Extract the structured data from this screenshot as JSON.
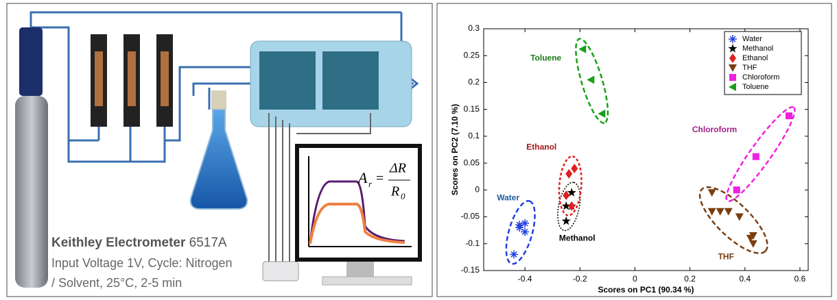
{
  "diagram": {
    "instrument": "Keithley Electrometer",
    "model": "6517A",
    "conditions_line1": "Input Voltage 1V, Cycle: Nitrogen",
    "conditions_line2": "/ Solvent, 25°C, 2-5 min",
    "formula": {
      "lhs": "A",
      "lhs_sub": "r",
      "numerator": "ΔR",
      "denominator": "R",
      "denominator_sub": "0"
    }
  },
  "chart_data": {
    "type": "scatter",
    "xlabel": "Scores on PC1 (90.34 %)",
    "ylabel": "Scores on PC2 (7.10 %)",
    "xlim": [
      -0.55,
      0.63
    ],
    "ylim": [
      -0.15,
      0.3
    ],
    "xticks": [
      -0.4,
      -0.2,
      0,
      0.2,
      0.4,
      0.6
    ],
    "yticks": [
      -0.15,
      -0.1,
      -0.05,
      0,
      0.05,
      0.1,
      0.15,
      0.2,
      0.25,
      0.3
    ],
    "grid": false,
    "legend": "upper right",
    "series": [
      {
        "name": "Water",
        "color": "#2040e0",
        "marker": "asterisk",
        "x": [
          -0.42,
          -0.4,
          -0.4,
          -0.42,
          -0.44
        ],
        "y": [
          -0.065,
          -0.062,
          -0.078,
          -0.07,
          -0.12
        ]
      },
      {
        "name": "Methanol",
        "color": "#000000",
        "marker": "star",
        "x": [
          -0.23,
          -0.25,
          -0.23,
          -0.25
        ],
        "y": [
          -0.005,
          -0.03,
          -0.03,
          -0.058
        ]
      },
      {
        "name": "Ethanol",
        "color": "#e02020",
        "marker": "diamond",
        "x": [
          -0.24,
          -0.22,
          -0.25,
          -0.23
        ],
        "y": [
          0.03,
          0.04,
          -0.01,
          -0.03
        ]
      },
      {
        "name": "THF",
        "color": "#7a3e10",
        "marker": "triangle-down",
        "x": [
          0.28,
          0.28,
          0.31,
          0.34,
          0.38,
          0.42,
          0.43,
          0.43
        ],
        "y": [
          -0.005,
          -0.04,
          -0.04,
          -0.04,
          -0.05,
          -0.09,
          -0.1,
          -0.085
        ]
      },
      {
        "name": "Chloroform",
        "color": "#f020e0",
        "marker": "square",
        "x": [
          0.37,
          0.44,
          0.56
        ],
        "y": [
          0.0,
          0.062,
          0.138
        ]
      },
      {
        "name": "Toluene",
        "color": "#18a018",
        "marker": "triangle-left",
        "x": [
          -0.19,
          -0.16,
          -0.12
        ],
        "y": [
          0.262,
          0.205,
          0.142
        ]
      }
    ],
    "annotations": [
      {
        "text": "Water",
        "color": "#1f5aa0"
      },
      {
        "text": "Methanol",
        "color": "#000000"
      },
      {
        "text": "Ethanol",
        "color": "#a01818"
      },
      {
        "text": "THF",
        "color": "#7a3e10"
      },
      {
        "text": "Chloroform",
        "color": "#a0208a"
      },
      {
        "text": "Toluene",
        "color": "#1a7a1a"
      }
    ]
  }
}
